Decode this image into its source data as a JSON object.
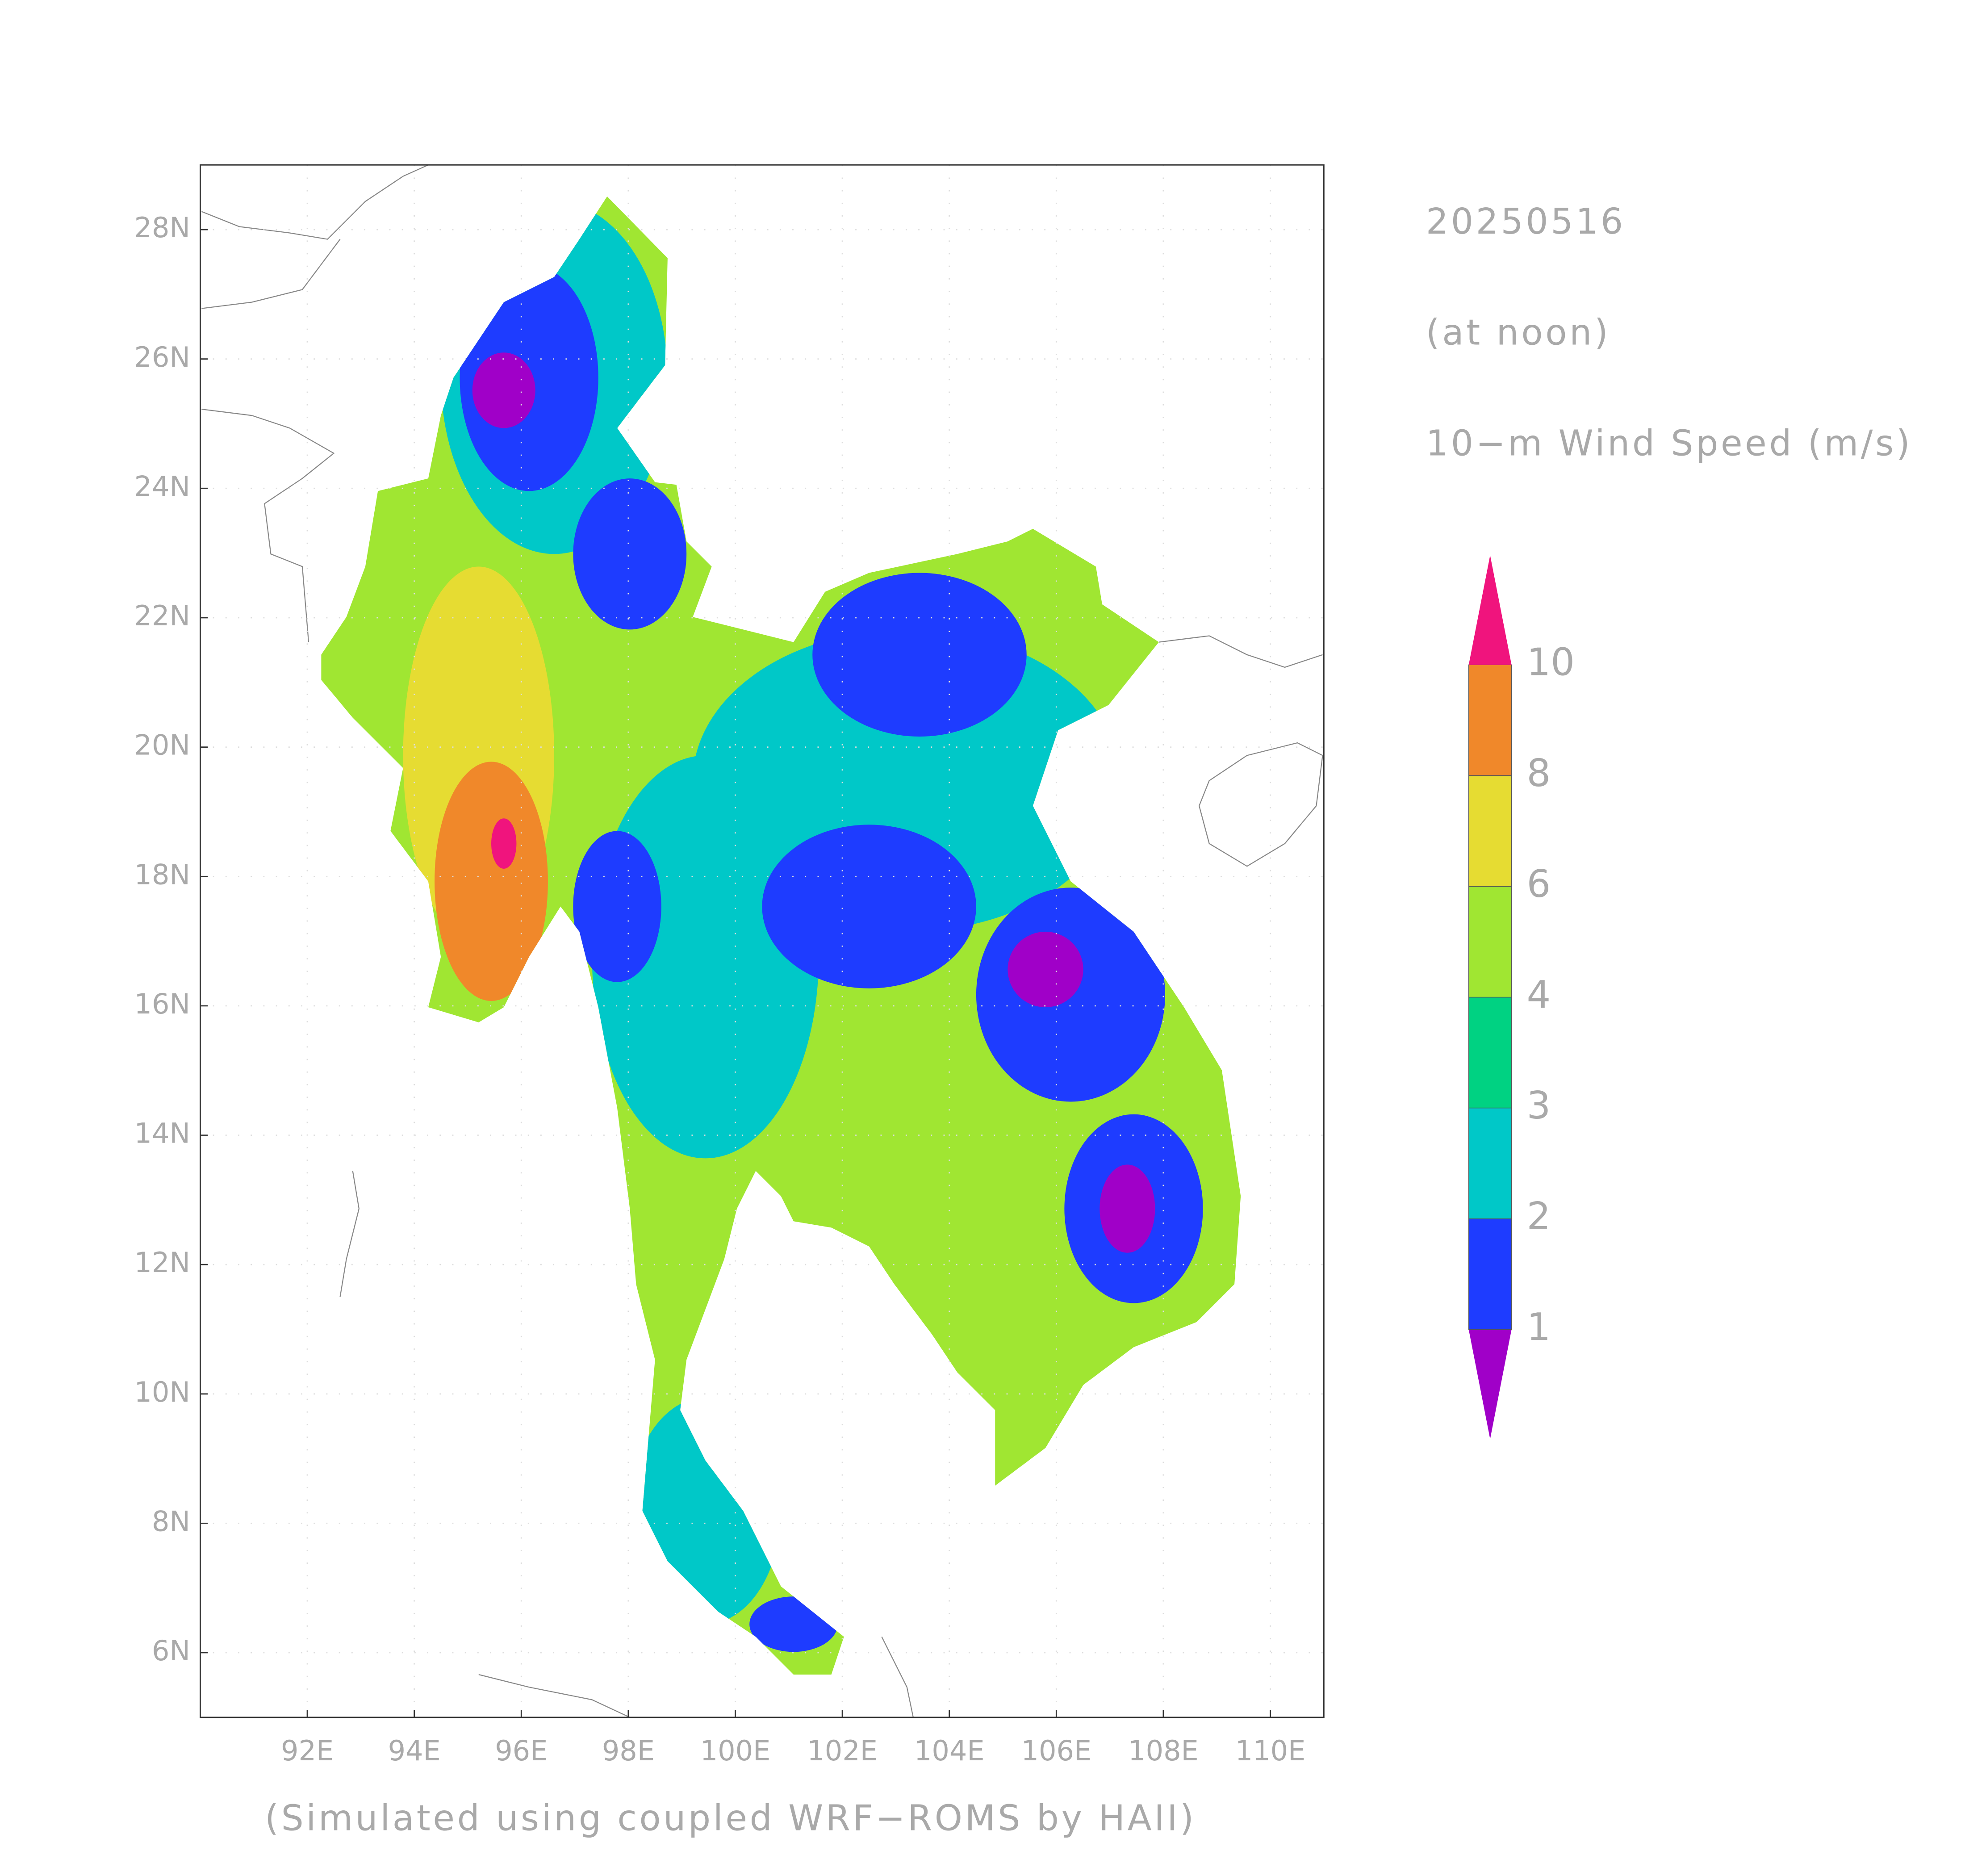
{
  "map": {
    "date": "20250516",
    "time": "(at noon)",
    "variable": "10−m Wind Speed (m/s)",
    "credit": "(Simulated using coupled WRF−ROMS by HAII)",
    "xlim": [
      90,
      111
    ],
    "ylim": [
      5,
      29
    ],
    "lon_ticks": [
      {
        "value": 92,
        "label": "92E"
      },
      {
        "value": 94,
        "label": "94E"
      },
      {
        "value": 96,
        "label": "96E"
      },
      {
        "value": 98,
        "label": "98E"
      },
      {
        "value": 100,
        "label": "100E"
      },
      {
        "value": 102,
        "label": "102E"
      },
      {
        "value": 104,
        "label": "104E"
      },
      {
        "value": 106,
        "label": "106E"
      },
      {
        "value": 108,
        "label": "108E"
      },
      {
        "value": 110,
        "label": "110E"
      }
    ],
    "lat_ticks": [
      {
        "value": 6,
        "label": "6N"
      },
      {
        "value": 8,
        "label": "8N"
      },
      {
        "value": 10,
        "label": "10N"
      },
      {
        "value": 12,
        "label": "12N"
      },
      {
        "value": 14,
        "label": "14N"
      },
      {
        "value": 16,
        "label": "16N"
      },
      {
        "value": 18,
        "label": "18N"
      },
      {
        "value": 20,
        "label": "20N"
      },
      {
        "value": 22,
        "label": "22N"
      },
      {
        "value": 24,
        "label": "24N"
      },
      {
        "value": 26,
        "label": "26N"
      },
      {
        "value": 28,
        "label": "28N"
      }
    ],
    "legend": {
      "levels": [
        1,
        2,
        3,
        4,
        6,
        8,
        10
      ],
      "colors": [
        "#a000c8",
        "#1e3cff",
        "#00c8c8",
        "#00d282",
        "#a0e632",
        "#e6dc32",
        "#f0882a",
        "#f0147d"
      ]
    }
  }
}
